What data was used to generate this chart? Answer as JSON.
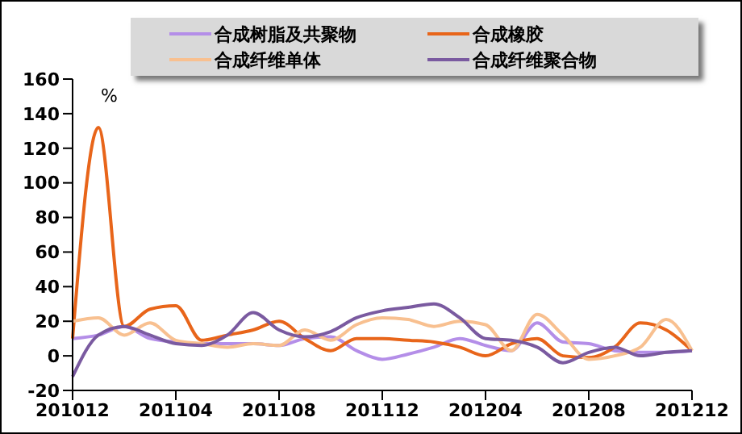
{
  "chart_data": {
    "type": "line",
    "ylabel": "%",
    "categories": [
      "201012",
      null,
      null,
      null,
      "201104",
      null,
      null,
      null,
      "201108",
      null,
      null,
      null,
      "201112",
      null,
      null,
      null,
      "201204",
      null,
      null,
      null,
      "201208",
      null,
      null,
      null,
      "201212"
    ],
    "series": [
      {
        "name": "合成树脂及共聚物",
        "color": "#b48ee8",
        "values": [
          10,
          12,
          17,
          10,
          8,
          7,
          7,
          7,
          6,
          10,
          11,
          3,
          -2,
          1,
          5,
          10,
          6,
          3,
          19,
          8,
          7,
          3,
          2,
          2,
          3
        ]
      },
      {
        "name": "合成橡胶",
        "color": "#e8651a",
        "values": [
          10,
          132,
          17,
          27,
          29,
          9,
          12,
          15,
          20,
          10,
          3,
          10,
          10,
          9,
          8,
          5,
          0,
          7,
          10,
          0,
          -1,
          5,
          19,
          15,
          3
        ]
      },
      {
        "name": "合成纤维单体",
        "color": "#f8c090",
        "values": [
          20,
          22,
          12,
          19,
          9,
          7,
          5,
          7,
          6,
          15,
          9,
          18,
          22,
          21,
          17,
          20,
          18,
          3,
          24,
          12,
          -2,
          0,
          5,
          21,
          3
        ]
      },
      {
        "name": "合成纤维聚合物",
        "color": "#7a5aa0",
        "values": [
          -12,
          12,
          17,
          12,
          7,
          6,
          12,
          25,
          15,
          11,
          14,
          22,
          26,
          28,
          30,
          22,
          10,
          9,
          5,
          -4,
          2,
          5,
          0,
          2,
          3
        ]
      }
    ],
    "ylim": [
      -20,
      160
    ],
    "yticks": [
      -20,
      0,
      20,
      40,
      60,
      80,
      100,
      120,
      140,
      160
    ],
    "grid": false,
    "legend": "top",
    "marker": "none",
    "line_style": "solid"
  }
}
